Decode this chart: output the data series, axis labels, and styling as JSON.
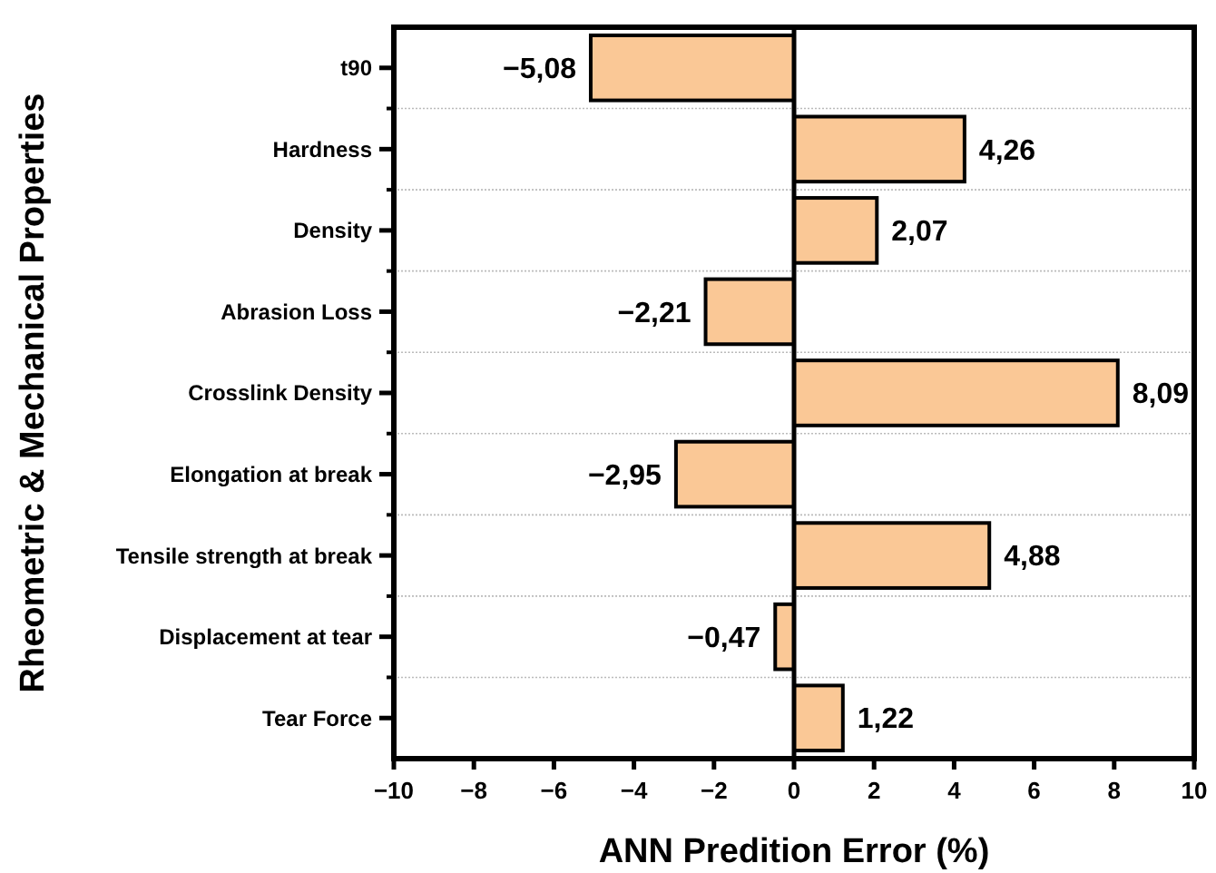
{
  "chart_data": {
    "type": "bar",
    "orientation": "horizontal",
    "xlabel": "ANN Predition Error (%)",
    "ylabel": "Rheometric & Mechanical Properties",
    "categories": [
      "t90",
      "Hardness",
      "Density",
      "Abrasion Loss",
      "Crosslink Density",
      "Elongation at break",
      "Tensile strength at break",
      "Displacement at tear",
      "Tear Force"
    ],
    "values": [
      -5.08,
      4.26,
      2.07,
      -2.21,
      8.09,
      -2.95,
      4.88,
      -0.47,
      1.22
    ],
    "value_labels": [
      "−5,08",
      "4,26",
      "2,07",
      "−2,21",
      "8,09",
      "−2,95",
      "4,88",
      "−0,47",
      "1,22"
    ],
    "color": "#fac896",
    "xlim": [
      -10,
      10
    ],
    "xticks": [
      {
        "value": -10,
        "label": "−10"
      },
      {
        "value": -8,
        "label": "−8"
      },
      {
        "value": -6,
        "label": "−6"
      },
      {
        "value": -4,
        "label": "−4"
      },
      {
        "value": -2,
        "label": "−2"
      },
      0,
      2,
      4,
      6,
      8,
      10
    ],
    "grid": "y"
  }
}
